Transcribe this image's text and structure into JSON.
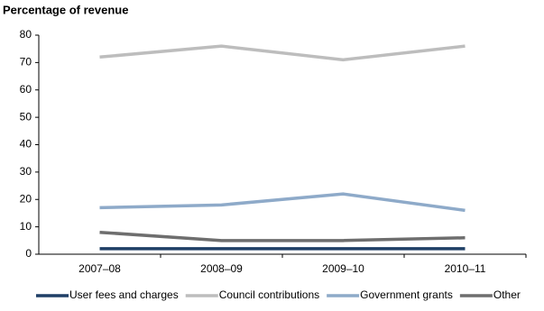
{
  "chart_data": {
    "type": "line",
    "title": "Percentage of revenue",
    "categories": [
      "2007–08",
      "2008–09",
      "2009–10",
      "2010–11"
    ],
    "series": [
      {
        "name": "User fees and charges",
        "color": "#1f3f66",
        "values": [
          2,
          2,
          2,
          2
        ]
      },
      {
        "name": "Council contributions",
        "color": "#bdbdbd",
        "values": [
          72,
          76,
          71,
          76
        ]
      },
      {
        "name": "Government grants",
        "color": "#8eaac9",
        "values": [
          17,
          18,
          22,
          16
        ]
      },
      {
        "name": "Other",
        "color": "#6e6e6e",
        "values": [
          8,
          5,
          5,
          6
        ]
      }
    ],
    "ylim": [
      0,
      80
    ],
    "yticks": [
      0,
      10,
      20,
      30,
      40,
      50,
      60,
      70,
      80
    ],
    "grid": false
  }
}
